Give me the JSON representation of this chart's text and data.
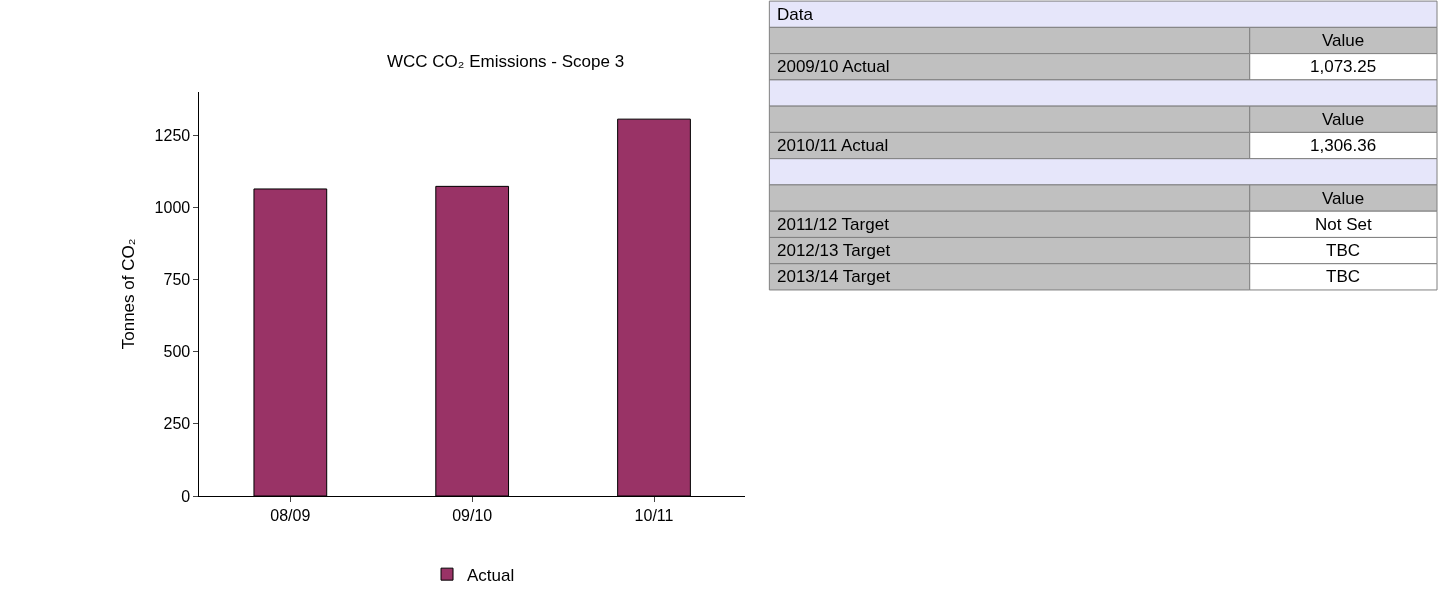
{
  "chart_data": [
    {
      "type": "bar",
      "title": "WCC CO₂ Emissions - Scope 3",
      "ylabel": "Tonnes of CO₂",
      "categories": [
        "08/09",
        "09/10",
        "10/11"
      ],
      "series": [
        {
          "name": "Actual",
          "color": "#993366",
          "values": [
            1064,
            1073,
            1306
          ]
        }
      ],
      "ylim": [
        0,
        1400
      ],
      "yticks": [
        0,
        250,
        500,
        750,
        1000,
        1250
      ],
      "legend": "bottom"
    },
    {
      "type": "other",
      "title": "Data",
      "categories": [
        null,
        "2009/10 Actual",
        null,
        null,
        "2010/11 Actual",
        null,
        null,
        "2011/12 Target",
        "2012/13 Target",
        "2013/14 Target"
      ],
      "value_labels": [
        "Value",
        "1,073.25",
        null,
        "Value",
        "1,306.36",
        null,
        "Value",
        "Not Set",
        "TBC",
        "TBC"
      ]
    }
  ]
}
